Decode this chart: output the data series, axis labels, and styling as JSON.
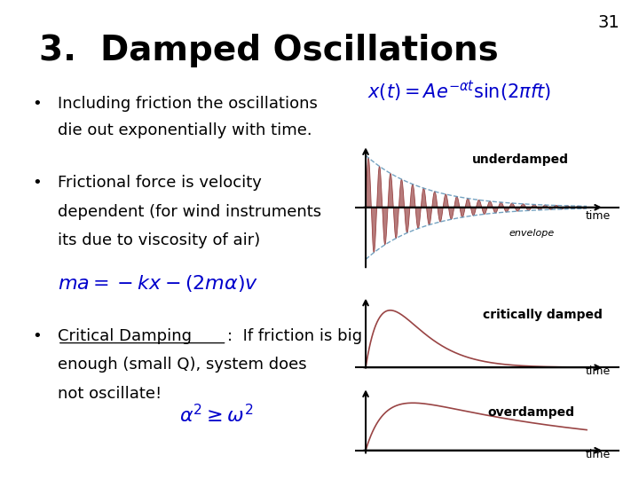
{
  "title": "3.  Damped Oscillations",
  "slide_number": "31",
  "bg_color": "#ffffff",
  "title_fontsize": 28,
  "title_color": "#000000",
  "bullet1_line1": "Including friction the oscillations",
  "bullet1_line2": "die out exponentially with time.",
  "bullet2_line1": "Frictional force is velocity",
  "bullet2_line2": "dependent (for wind instruments",
  "bullet2_line3": "its due to viscosity of air)",
  "bullet3_line1": "Critical Damping",
  "bullet3_line2": ":  If friction is big",
  "bullet3_line3": "enough (small Q), system does",
  "bullet3_line4": "not oscillate!",
  "formula1": "$x(t) = Ae^{-\\alpha t}\\sin(2\\pi f t)$",
  "formula2": "$ma = -kx-(2m\\alpha)v$",
  "formula3": "$\\alpha^2 \\geq \\omega^2$",
  "underdamped_label": "underdamped",
  "critically_damped_label": "critically damped",
  "overdamped_label": "overdamped",
  "envelope_label": "envelope",
  "time_label": "time",
  "envelope_color": "#6699bb",
  "oscillation_color": "#994444",
  "text_color": "#000000",
  "formula_color": "#0000cc",
  "bullet_fontsize": 13,
  "label_fontsize": 10
}
